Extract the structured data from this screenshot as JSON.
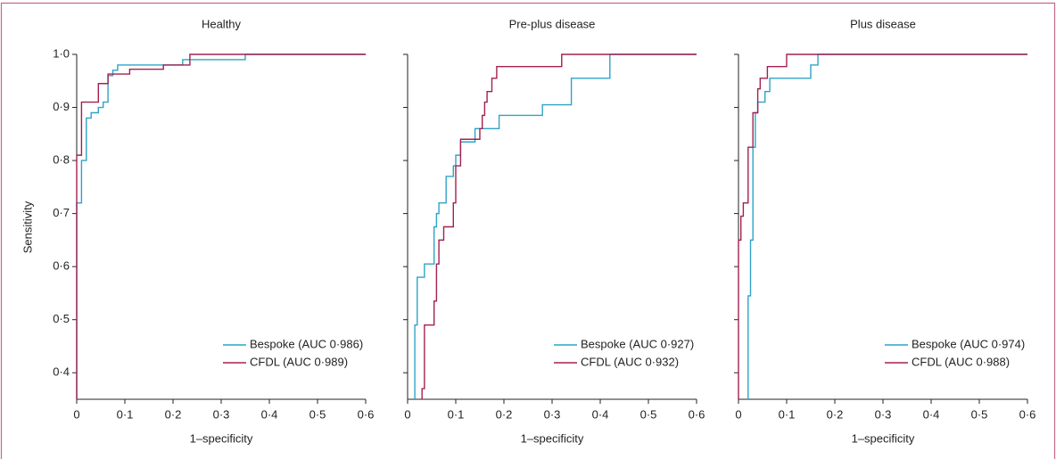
{
  "chart_data": [
    {
      "type": "line",
      "title": "Healthy",
      "xlabel": "1–specificity",
      "ylabel": "Sensitivity",
      "xlim": [
        0,
        0.6
      ],
      "ylim": [
        0.35,
        1.0
      ],
      "xticks": [
        0,
        {
          "value": 0.1,
          "label": "0·1"
        },
        {
          "value": 0.2,
          "label": "0·2"
        },
        {
          "value": 0.3,
          "label": "0·3"
        },
        {
          "value": 0.4,
          "label": "0·4"
        },
        {
          "value": 0.5,
          "label": "0·5"
        },
        {
          "value": 0.6,
          "label": "0·6"
        }
      ],
      "yticks": [
        {
          "value": 0.4,
          "label": "0·4"
        },
        {
          "value": 0.5,
          "label": "0·5"
        },
        {
          "value": 0.6,
          "label": "0·6"
        },
        {
          "value": 0.7,
          "label": "0·7"
        },
        {
          "value": 0.8,
          "label": "0·8"
        },
        {
          "value": 0.9,
          "label": "0·9"
        },
        {
          "value": 1.0,
          "label": "1·0"
        }
      ],
      "ytick_labels": true,
      "legend": "lower right",
      "series": [
        {
          "name": "Bespoke (AUC 0·986)",
          "color": "#2fa3c6",
          "x": [
            0,
            0,
            0.01,
            0.01,
            0.02,
            0.02,
            0.03,
            0.03,
            0.045,
            0.045,
            0.055,
            0.055,
            0.065,
            0.065,
            0.075,
            0.075,
            0.085,
            0.085,
            0.22,
            0.22,
            0.35,
            0.35,
            0.6
          ],
          "values": [
            0.35,
            0.72,
            0.72,
            0.8,
            0.8,
            0.88,
            0.88,
            0.89,
            0.89,
            0.9,
            0.9,
            0.91,
            0.91,
            0.96,
            0.96,
            0.97,
            0.97,
            0.98,
            0.98,
            0.99,
            0.99,
            1.0,
            1.0
          ]
        },
        {
          "name": "CFDL (AUC 0·989)",
          "color": "#a3214f",
          "x": [
            0,
            0,
            0.01,
            0.01,
            0.045,
            0.045,
            0.065,
            0.065,
            0.11,
            0.11,
            0.18,
            0.18,
            0.235,
            0.235,
            0.6
          ],
          "values": [
            0.35,
            0.81,
            0.81,
            0.91,
            0.91,
            0.945,
            0.945,
            0.963,
            0.963,
            0.972,
            0.972,
            0.98,
            0.98,
            1.0,
            1.0
          ]
        }
      ]
    },
    {
      "type": "line",
      "title": "Pre-plus disease",
      "xlabel": "1–specificity",
      "xlim": [
        0,
        0.6
      ],
      "ylim": [
        0.35,
        1.0
      ],
      "xticks": [
        0,
        {
          "value": 0.1,
          "label": "0·1"
        },
        {
          "value": 0.2,
          "label": "0·2"
        },
        {
          "value": 0.3,
          "label": "0·3"
        },
        {
          "value": 0.4,
          "label": "0·4"
        },
        {
          "value": 0.5,
          "label": "0·5"
        },
        {
          "value": 0.6,
          "label": "0·6"
        }
      ],
      "yticks": [
        0.4,
        0.5,
        0.6,
        0.7,
        0.8,
        0.9,
        1.0
      ],
      "ytick_labels": false,
      "legend": "lower right",
      "series": [
        {
          "name": "Bespoke (AUC 0·927)",
          "color": "#2fa3c6",
          "x": [
            0.015,
            0.015,
            0.02,
            0.02,
            0.035,
            0.035,
            0.055,
            0.055,
            0.06,
            0.06,
            0.065,
            0.065,
            0.08,
            0.08,
            0.095,
            0.095,
            0.1,
            0.1,
            0.11,
            0.11,
            0.14,
            0.14,
            0.19,
            0.19,
            0.28,
            0.28,
            0.34,
            0.34,
            0.42,
            0.42,
            0.6
          ],
          "values": [
            0.35,
            0.49,
            0.49,
            0.58,
            0.58,
            0.605,
            0.605,
            0.675,
            0.675,
            0.7,
            0.7,
            0.72,
            0.72,
            0.77,
            0.77,
            0.79,
            0.79,
            0.81,
            0.81,
            0.835,
            0.835,
            0.86,
            0.86,
            0.885,
            0.885,
            0.905,
            0.905,
            0.955,
            0.955,
            1.0,
            1.0
          ]
        },
        {
          "name": "CFDL (AUC 0·932)",
          "color": "#a3214f",
          "x": [
            0.03,
            0.03,
            0.035,
            0.035,
            0.055,
            0.055,
            0.06,
            0.06,
            0.065,
            0.065,
            0.075,
            0.075,
            0.095,
            0.095,
            0.1,
            0.1,
            0.11,
            0.11,
            0.15,
            0.15,
            0.155,
            0.155,
            0.16,
            0.16,
            0.165,
            0.165,
            0.175,
            0.175,
            0.185,
            0.185,
            0.32,
            0.32,
            0.6
          ],
          "values": [
            0.35,
            0.37,
            0.37,
            0.49,
            0.49,
            0.535,
            0.535,
            0.605,
            0.605,
            0.65,
            0.65,
            0.675,
            0.675,
            0.72,
            0.72,
            0.79,
            0.79,
            0.84,
            0.84,
            0.86,
            0.86,
            0.885,
            0.885,
            0.91,
            0.91,
            0.93,
            0.93,
            0.955,
            0.955,
            0.977,
            0.977,
            1.0,
            1.0
          ]
        }
      ]
    },
    {
      "type": "line",
      "title": "Plus disease",
      "xlabel": "1–specificity",
      "xlim": [
        0,
        0.6
      ],
      "ylim": [
        0.35,
        1.0
      ],
      "xticks": [
        0,
        {
          "value": 0.1,
          "label": "0·1"
        },
        {
          "value": 0.2,
          "label": "0·2"
        },
        {
          "value": 0.3,
          "label": "0·3"
        },
        {
          "value": 0.4,
          "label": "0·4"
        },
        {
          "value": 0.5,
          "label": "0·5"
        },
        {
          "value": 0.6,
          "label": "0·6"
        }
      ],
      "yticks": [
        0.4,
        0.5,
        0.6,
        0.7,
        0.8,
        0.9,
        1.0
      ],
      "ytick_labels": false,
      "legend": "lower right",
      "series": [
        {
          "name": "Bespoke (AUC 0·974)",
          "color": "#2fa3c6",
          "x": [
            0.02,
            0.02,
            0.025,
            0.025,
            0.03,
            0.03,
            0.035,
            0.035,
            0.04,
            0.04,
            0.055,
            0.055,
            0.065,
            0.065,
            0.15,
            0.15,
            0.165,
            0.165,
            0.6
          ],
          "values": [
            0.35,
            0.545,
            0.545,
            0.65,
            0.65,
            0.825,
            0.825,
            0.89,
            0.89,
            0.91,
            0.91,
            0.93,
            0.93,
            0.955,
            0.955,
            0.98,
            0.98,
            1.0,
            1.0
          ]
        },
        {
          "name": "CFDL (AUC 0·988)",
          "color": "#a3214f",
          "x": [
            0,
            0,
            0.005,
            0.005,
            0.01,
            0.01,
            0.02,
            0.02,
            0.03,
            0.03,
            0.04,
            0.04,
            0.045,
            0.045,
            0.06,
            0.06,
            0.1,
            0.1,
            0.6
          ],
          "values": [
            0.35,
            0.65,
            0.65,
            0.695,
            0.695,
            0.72,
            0.72,
            0.825,
            0.825,
            0.89,
            0.89,
            0.935,
            0.935,
            0.955,
            0.955,
            0.977,
            0.977,
            1.0,
            1.0
          ]
        }
      ]
    }
  ]
}
